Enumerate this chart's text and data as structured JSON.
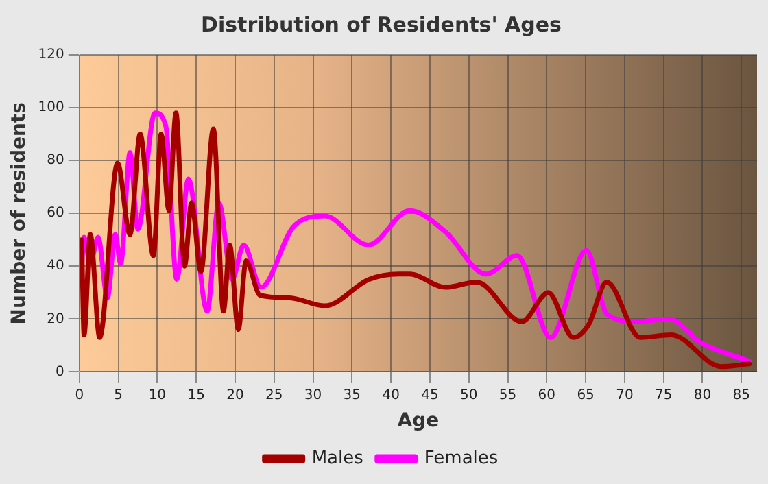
{
  "chart_data": {
    "type": "line",
    "title": "Distribution of Residents' Ages",
    "xlabel": "Age",
    "ylabel": "Number of residents",
    "xlim": [
      0,
      87
    ],
    "xticks": [
      0,
      5,
      10,
      15,
      20,
      25,
      30,
      35,
      40,
      45,
      50,
      55,
      60,
      65,
      70,
      75,
      80,
      85
    ],
    "ylim": [
      0,
      120
    ],
    "yticks": [
      0,
      20,
      40,
      60,
      80,
      100,
      120
    ],
    "grid": true,
    "legend": "bottom",
    "marker": "none",
    "line_style": "solid",
    "series": [
      {
        "name": "Males",
        "color": "#a50000",
        "x": [
          0.3,
          0.6,
          1.4,
          2.6,
          4.9,
          6.5,
          7.8,
          9.5,
          10.5,
          11.5,
          12.4,
          13.5,
          14.4,
          15.6,
          17.2,
          18.5,
          19.3,
          20.4,
          21.4,
          23.2,
          27,
          31.5,
          37.2,
          41,
          42.4,
          47,
          51,
          56.8,
          60.2,
          63.4,
          65.4,
          67.7,
          72,
          76,
          82.4,
          86
        ],
        "values": [
          50,
          14,
          52,
          13,
          79,
          52,
          90,
          44,
          90,
          61,
          98,
          40,
          64,
          38,
          92,
          23,
          48,
          16,
          42,
          29,
          28,
          25,
          35,
          37,
          37,
          32,
          34,
          19,
          30,
          13,
          18,
          34,
          13,
          14,
          2,
          3
        ]
      },
      {
        "name": "Females",
        "color": "#ff00ff",
        "x": [
          0.3,
          0.6,
          1.4,
          2.4,
          3.6,
          4.6,
          5.3,
          6.5,
          7.5,
          9.7,
          11.1,
          12.5,
          14,
          16.4,
          17.9,
          19.6,
          21.1,
          23.3,
          27.5,
          31.5,
          37.1,
          42.4,
          47,
          52.2,
          56.2,
          60.5,
          65.1,
          67.7,
          71.4,
          75.7,
          79.8,
          86
        ],
        "values": [
          40,
          51,
          41,
          51,
          28,
          52,
          41,
          83,
          54,
          98,
          93,
          35,
          73,
          23,
          64,
          35,
          48,
          32,
          55,
          59,
          48,
          61,
          53,
          37,
          44,
          13,
          46,
          22,
          19,
          20,
          11,
          4
        ]
      }
    ]
  }
}
